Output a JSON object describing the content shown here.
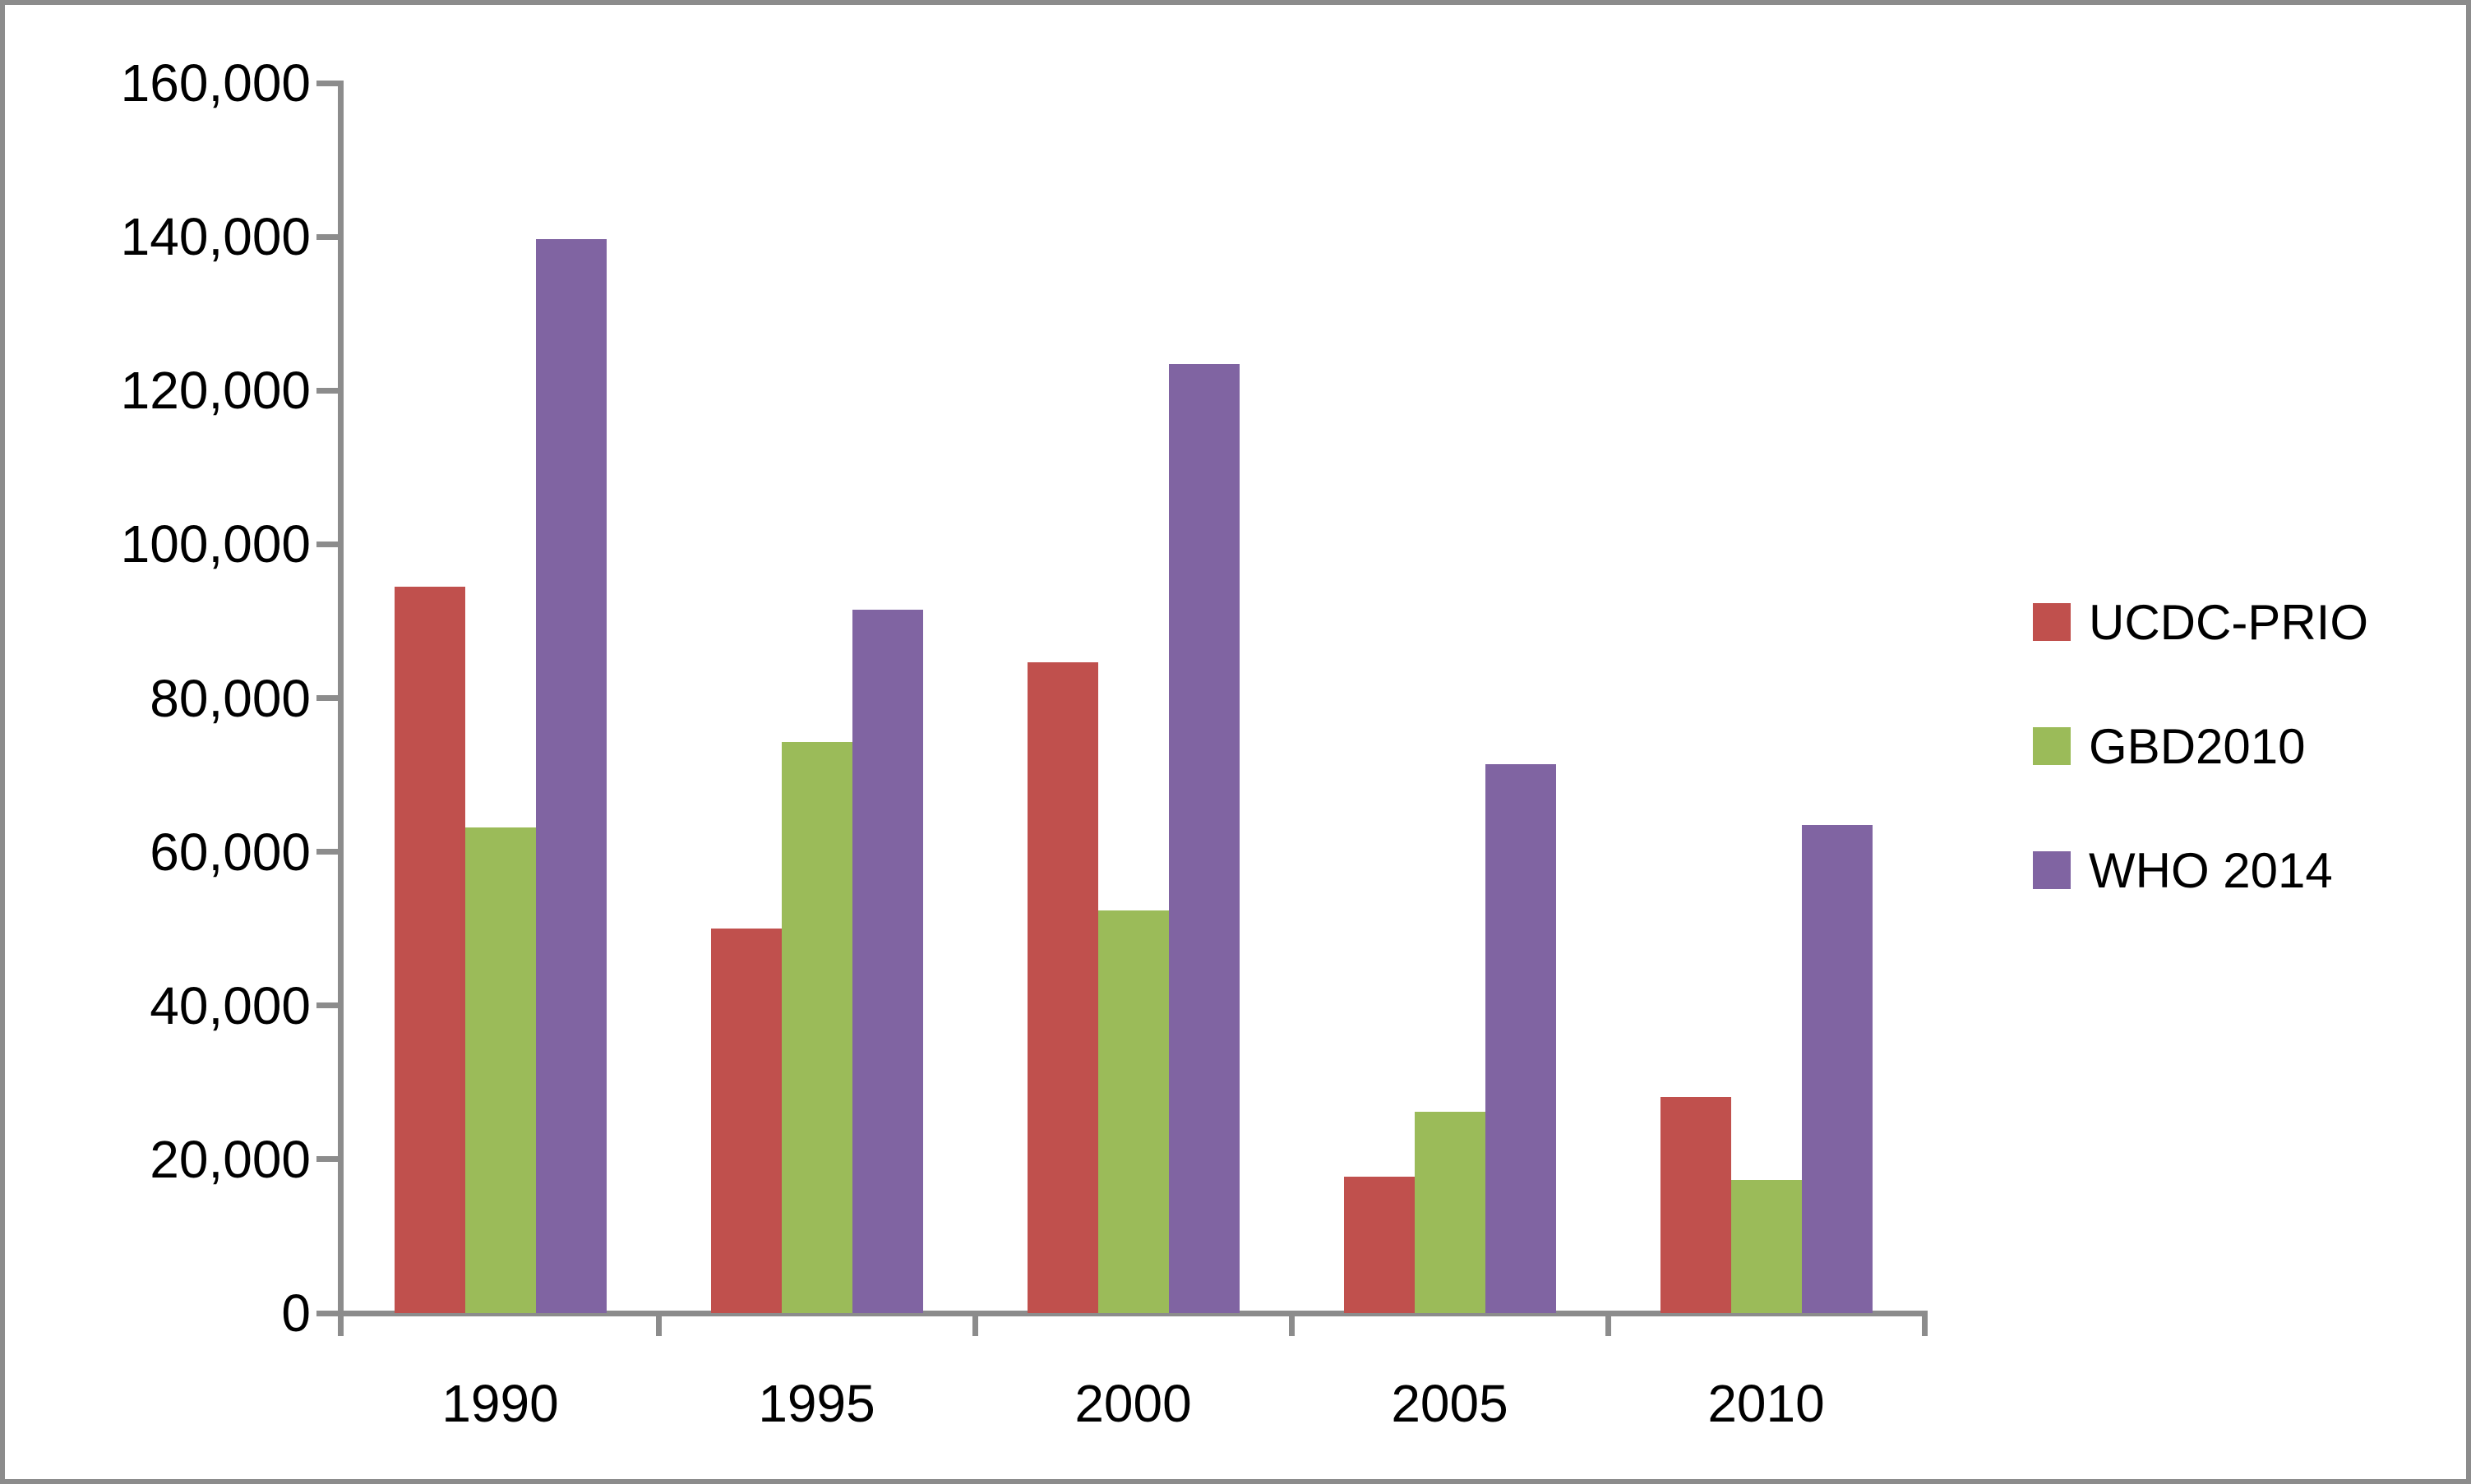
{
  "chart_data": {
    "type": "bar",
    "title": "",
    "xlabel": "",
    "ylabel": "",
    "categories": [
      "1990",
      "1995",
      "2000",
      "2005",
      "2010"
    ],
    "series": [
      {
        "name": "UCDC-PRIO",
        "color": "#C0504D",
        "values": [
          94500,
          50000,
          84700,
          17700,
          28100
        ]
      },
      {
        "name": "GBD2010",
        "color": "#9BBB59",
        "values": [
          63200,
          74300,
          52400,
          26200,
          17300
        ]
      },
      {
        "name": "WHO 2014",
        "color": "#8064A2",
        "values": [
          139700,
          91500,
          123400,
          71400,
          63500
        ]
      }
    ],
    "ylim": [
      0,
      160000
    ],
    "ytick_step": 20000,
    "ytick_labels": [
      "0",
      "20,000",
      "40,000",
      "60,000",
      "80,000",
      "100,000",
      "120,000",
      "140,000",
      "160,000"
    ],
    "grid": false,
    "legend_position": "right",
    "axis_color": "#8C8C8C",
    "background": "#FFFFFF"
  }
}
